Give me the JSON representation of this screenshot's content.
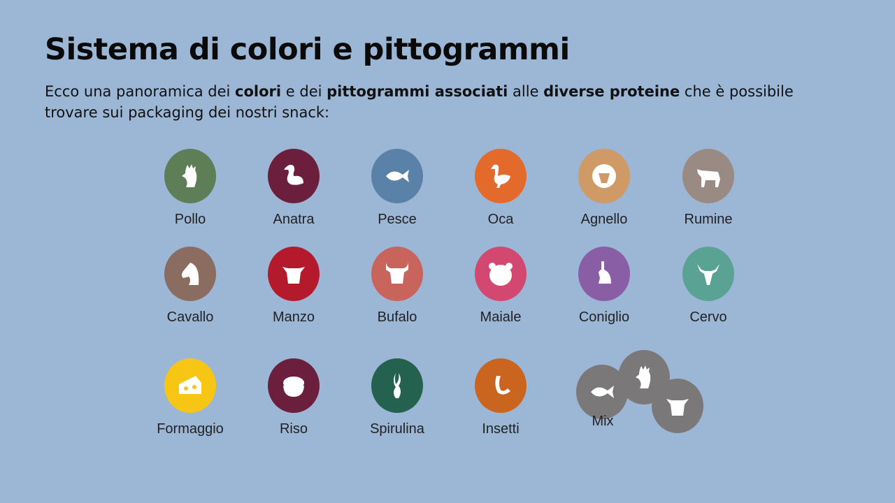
{
  "title": "Sistema di colori e pittogrammi",
  "intro": {
    "p1": "Ecco una panoramica dei ",
    "b1": "colori",
    "p2": " e dei ",
    "b2": "pittogrammi associati",
    "p3": " alle ",
    "b3": "diverse proteine",
    "p4": " che è possibile trovare sui packaging dei nostri snack:"
  },
  "items": [
    {
      "label": "Pollo",
      "color": "#5d7e56",
      "icon": "rooster-icon"
    },
    {
      "label": "Anatra",
      "color": "#6b1f3c",
      "icon": "duck-icon"
    },
    {
      "label": "Pesce",
      "color": "#5a82a8",
      "icon": "fish-icon"
    },
    {
      "label": "Oca",
      "color": "#e36a2a",
      "icon": "goose-icon"
    },
    {
      "label": "Agnello",
      "color": "#cf9a66",
      "icon": "sheep-icon"
    },
    {
      "label": "Rumine",
      "color": "#9a8a84",
      "icon": "cow-body-icon"
    },
    {
      "label": "Cavallo",
      "color": "#8a6c60",
      "icon": "horse-icon"
    },
    {
      "label": "Manzo",
      "color": "#b5192c",
      "icon": "cow-head-icon"
    },
    {
      "label": "Bufalo",
      "color": "#c8645c",
      "icon": "buffalo-icon"
    },
    {
      "label": "Maiale",
      "color": "#d34870",
      "icon": "pig-icon"
    },
    {
      "label": "Coniglio",
      "color": "#8a5ea5",
      "icon": "rabbit-icon"
    },
    {
      "label": "Cervo",
      "color": "#5aa394",
      "icon": "deer-icon"
    },
    {
      "label": "Formaggio",
      "color": "#f7c614",
      "icon": "cheese-icon"
    },
    {
      "label": "Riso",
      "color": "#6b1f3c",
      "icon": "rice-bowl-icon"
    },
    {
      "label": "Spirulina",
      "color": "#24614f",
      "icon": "seaweed-icon"
    },
    {
      "label": "Insetti",
      "color": "#c9651f",
      "icon": "larva-icon"
    }
  ],
  "mix": {
    "label": "Mix",
    "color": "#7a7878",
    "icons": [
      "fish-icon",
      "rooster-icon",
      "cow-head-icon"
    ]
  }
}
